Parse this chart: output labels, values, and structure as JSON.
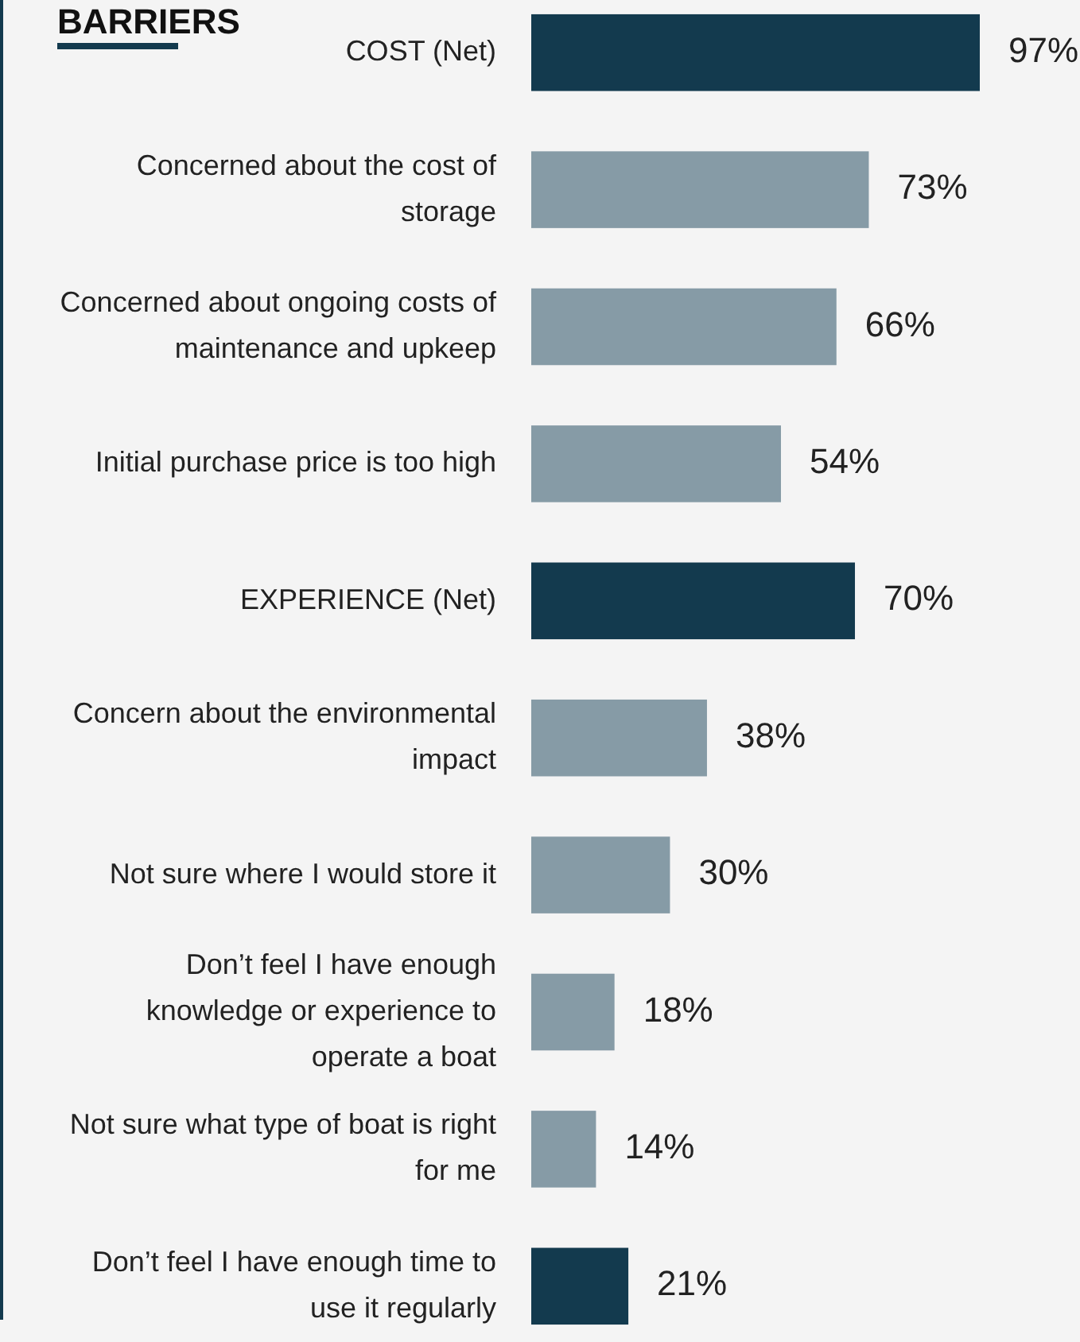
{
  "chart_data": {
    "type": "bar",
    "orientation": "horizontal",
    "title": "BARRIERS",
    "categories": [
      "COST (Net)",
      "Concerned about the cost of storage",
      "Concerned about ongoing costs of maintenance and upkeep",
      "Initial purchase price is too high",
      "EXPERIENCE (Net)",
      "Concern about the environmental impact",
      "Not sure where I would store it",
      "Don’t feel I have enough knowledge or experience to operate a boat",
      "Not sure what type of boat is right for me",
      "Don’t feel I have enough time to use it regularly"
    ],
    "values": [
      97,
      73,
      66,
      54,
      70,
      38,
      30,
      18,
      14,
      21
    ],
    "colors": [
      "#133a4e",
      "#869ba6",
      "#869ba6",
      "#869ba6",
      "#133a4e",
      "#869ba6",
      "#869ba6",
      "#869ba6",
      "#869ba6",
      "#133a4e"
    ],
    "value_labels": [
      "97%",
      "73%",
      "66%",
      "54%",
      "70%",
      "38%",
      "30%",
      "18%",
      "14%",
      "21%"
    ]
  }
}
